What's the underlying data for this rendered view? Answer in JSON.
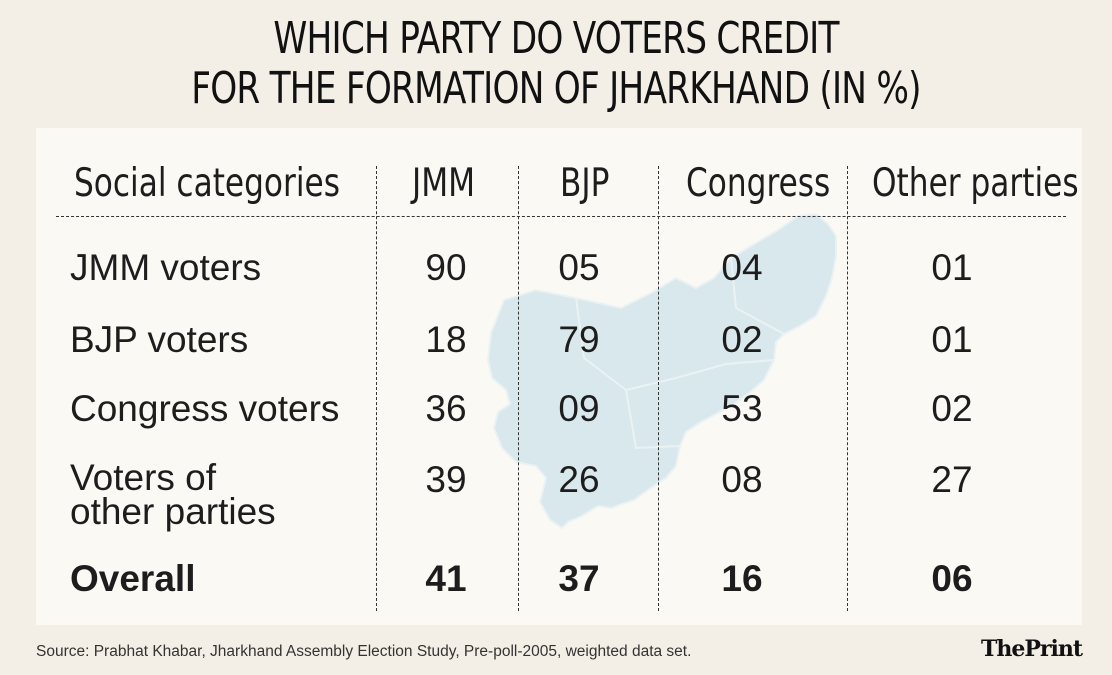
{
  "title_line1": "WHICH PARTY DO VOTERS CREDIT",
  "title_line2": "FOR THE FORMATION OF JHARKHAND (IN %)",
  "source": "Source: Prabhat Khabar, Jharkhand Assembly Election Study, Pre-poll-2005, weighted data set.",
  "brand": "ThePrint",
  "colors": {
    "background": "#f3efe6",
    "card": "#fbf9f4",
    "map_fill": "#d9e8ec"
  },
  "chart_data": {
    "type": "table",
    "title": "WHICH PARTY DO VOTERS CREDIT FOR THE FORMATION OF JHARKHAND (IN %)",
    "columns": [
      "Social categories",
      "JMM",
      "BJP",
      "Congress",
      "Other parties"
    ],
    "rows": [
      {
        "label": "JMM voters",
        "values": [
          "90",
          "05",
          "04",
          "01"
        ]
      },
      {
        "label": "BJP voters",
        "values": [
          "18",
          "79",
          "02",
          "01"
        ]
      },
      {
        "label": "Congress voters",
        "values": [
          "36",
          "09",
          "53",
          "02"
        ]
      },
      {
        "label_line1": "Voters of",
        "label_line2": "other parties",
        "values": [
          "39",
          "26",
          "08",
          "27"
        ]
      },
      {
        "label": "Overall",
        "values": [
          "41",
          "37",
          "16",
          "06"
        ]
      }
    ]
  }
}
